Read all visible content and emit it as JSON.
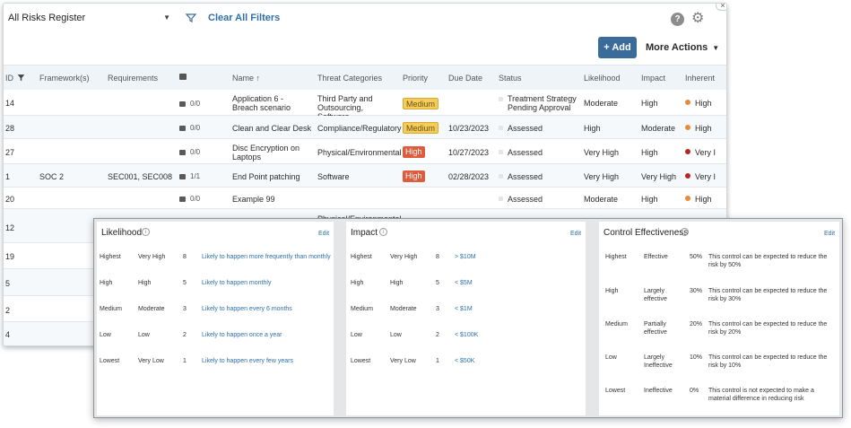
{
  "register": {
    "selector_value": "All Risks Register",
    "clear_filters_label": "Clear All Filters",
    "help_glyph": "?",
    "settings_glyph": "⚙",
    "add_label": "+ Add",
    "more_actions_label": "More Actions",
    "columns": {
      "id": "ID",
      "frameworks": "Framework(s)",
      "requirements": "Requirements",
      "name": "Name",
      "name_sort": "↑",
      "threat_categories": "Threat Categories",
      "priority": "Priority",
      "due_date": "Due Date",
      "status": "Status",
      "likelihood": "Likelihood",
      "impact": "Impact",
      "inherent": "Inherent"
    },
    "rows": [
      {
        "id": "14",
        "framework": "",
        "requirements": "",
        "comments": "0/0",
        "name": "Application 6 - Breach scenario",
        "threat": "Third Party and Outsourcing, Software",
        "priority": "Medium",
        "due": "",
        "status": "Treatment Strategy Pending Approval",
        "likelihood": "Moderate",
        "impact": "High",
        "inherent": "High"
      },
      {
        "id": "28",
        "framework": "",
        "requirements": "",
        "comments": "0/0",
        "name": "Clean and Clear Desk",
        "threat": "Compliance/Regulatory",
        "priority": "Medium",
        "due": "10/23/2023",
        "status": "Assessed",
        "likelihood": "High",
        "impact": "Moderate",
        "inherent": "High"
      },
      {
        "id": "27",
        "framework": "",
        "requirements": "",
        "comments": "0/0",
        "name": "Disc Encryption on Laptops",
        "threat": "Physical/Environmental",
        "priority": "High",
        "due": "10/27/2023",
        "status": "Assessed",
        "likelihood": "Very High",
        "impact": "High",
        "inherent": "Very I"
      },
      {
        "id": "1",
        "framework": "SOC 2",
        "requirements": "SEC001, SEC008",
        "comments": "1/1",
        "name": "End Point patching",
        "threat": "Software",
        "priority": "High",
        "due": "02/28/2023",
        "status": "Assessed",
        "likelihood": "Very High",
        "impact": "Very High",
        "inherent": "Very I"
      },
      {
        "id": "20",
        "framework": "",
        "requirements": "",
        "comments": "0/0",
        "name": "Example 99",
        "threat": "",
        "priority": "",
        "due": "",
        "status": "Assessed",
        "likelihood": "Moderate",
        "impact": "High",
        "inherent": "High"
      },
      {
        "id": "12",
        "framework": "",
        "requirements": "",
        "comments": "",
        "name": "",
        "threat": "Physical/Environmental",
        "priority": "",
        "due": "",
        "status": "",
        "likelihood": "",
        "impact": "",
        "inherent": ""
      },
      {
        "id": "19"
      },
      {
        "id": "5"
      },
      {
        "id": "2"
      },
      {
        "id": "4"
      }
    ],
    "colors": {
      "accent": "#3b6c99",
      "link": "#2e6fa8",
      "medium_badge": "#f3cc5c",
      "high_badge": "#de5c3c",
      "inherent_high_dot": "#e8893b",
      "inherent_very_high_dot": "#b8261f"
    }
  },
  "scales": {
    "likelihood": {
      "title": "Likelihood",
      "edit_label": "Edit",
      "rows": [
        {
          "level": "Highest",
          "label": "Very High",
          "score": "8",
          "desc": "Likely to happen more frequently than monthly"
        },
        {
          "level": "High",
          "label": "High",
          "score": "5",
          "desc": "Likely to happen monthly"
        },
        {
          "level": "Medium",
          "label": "Moderate",
          "score": "3",
          "desc": "Likely to happen every 6 months"
        },
        {
          "level": "Low",
          "label": "Low",
          "score": "2",
          "desc": "Likely to happen once a year"
        },
        {
          "level": "Lowest",
          "label": "Very Low",
          "score": "1",
          "desc": "Likely to happen every few years"
        }
      ]
    },
    "impact": {
      "title": "Impact",
      "edit_label": "Edit",
      "rows": [
        {
          "level": "Highest",
          "label": "Very High",
          "score": "8",
          "desc": "> $10M"
        },
        {
          "level": "High",
          "label": "High",
          "score": "5",
          "desc": "< $5M"
        },
        {
          "level": "Medium",
          "label": "Moderate",
          "score": "3",
          "desc": "< $1M"
        },
        {
          "level": "Low",
          "label": "Low",
          "score": "2",
          "desc": "< $100K"
        },
        {
          "level": "Lowest",
          "label": "Very Low",
          "score": "1",
          "desc": "< $50K"
        }
      ]
    },
    "control_effectiveness": {
      "title": "Control Effectiveness",
      "edit_label": "Edit",
      "rows": [
        {
          "level": "Highest",
          "label": "Effective",
          "pct": "50%",
          "desc": "This control can be expected to reduce the risk by 50%"
        },
        {
          "level": "High",
          "label": "Largely effective",
          "pct": "30%",
          "desc": "This control can be expected to reduce the risk by 30%"
        },
        {
          "level": "Medium",
          "label": "Partially effective",
          "pct": "20%",
          "desc": "This control can be expected to reduce the risk by 20%"
        },
        {
          "level": "Low",
          "label": "Largely Ineffective",
          "pct": "10%",
          "desc": "This control can be expected to reduce the risk by 10%"
        },
        {
          "level": "Lowest",
          "label": "Ineffective",
          "pct": "0%",
          "desc": "This control is not expected to make a material difference in reducing risk"
        }
      ]
    }
  }
}
